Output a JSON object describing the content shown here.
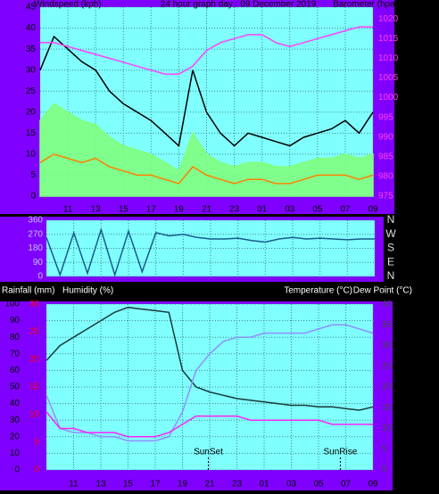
{
  "chart_data": [
    {
      "type": "line",
      "title": "24 hour graph day : 09 December 2019",
      "ylabel": "Windspeed (kph)",
      "y2label": "Barometer (hpa)",
      "x": [
        9,
        10,
        11,
        12,
        13,
        14,
        15,
        16,
        17,
        18,
        19,
        20,
        21,
        22,
        23,
        24,
        25,
        26,
        27,
        28,
        29,
        30,
        31,
        32,
        33
      ],
      "xlim": [
        9,
        33
      ],
      "xticks": [
        11,
        13,
        15,
        17,
        19,
        21,
        23,
        {
          "value": 25,
          "label": "01"
        },
        {
          "value": 27,
          "label": "03"
        },
        {
          "value": 29,
          "label": "05"
        },
        {
          "value": 31,
          "label": "07"
        },
        {
          "value": 33,
          "label": "09"
        }
      ],
      "ylim": [
        0,
        45
      ],
      "yticks": [
        0,
        5,
        10,
        15,
        20,
        25,
        30,
        35,
        40,
        45
      ],
      "y2lim": [
        975,
        1023
      ],
      "y2ticks": [
        975,
        980,
        985,
        990,
        995,
        1000,
        1005,
        1010,
        1015,
        1020
      ],
      "grid": true,
      "series": [
        {
          "color": "#000000",
          "values": [
            30,
            38,
            35,
            32,
            30,
            25,
            22,
            20,
            18,
            15,
            12,
            30,
            20,
            15,
            12,
            15,
            14,
            13,
            12,
            14,
            15,
            16,
            18,
            15,
            20
          ]
        },
        {
          "color": "#80ff80",
          "area": true,
          "values": [
            18,
            22,
            20,
            18,
            17,
            14,
            12,
            11,
            10,
            8,
            6,
            15,
            10,
            8,
            7,
            8,
            8,
            7,
            7,
            8,
            9,
            9,
            10,
            9,
            10
          ]
        },
        {
          "color": "#ff8000",
          "values": [
            8,
            10,
            9,
            8,
            9,
            7,
            6,
            5,
            5,
            4,
            3,
            7,
            5,
            4,
            3,
            4,
            4,
            3,
            3,
            4,
            5,
            5,
            5,
            4,
            5
          ]
        },
        {
          "color": "#ff40ff",
          "axis": "y2",
          "values": [
            1014,
            1014,
            1013,
            1012,
            1011,
            1010,
            1009,
            1008,
            1007,
            1006,
            1006,
            1008,
            1012,
            1014,
            1015,
            1016,
            1016,
            1014,
            1013,
            1014,
            1015,
            1016,
            1017,
            1018,
            1018
          ]
        }
      ]
    },
    {
      "type": "line",
      "x": [
        9,
        10,
        11,
        12,
        13,
        14,
        15,
        16,
        17,
        18,
        19,
        20,
        21,
        22,
        23,
        24,
        25,
        26,
        27,
        28,
        29,
        30,
        31,
        32,
        33
      ],
      "xlim": [
        9,
        33
      ],
      "ylim": [
        0,
        360
      ],
      "yticks": [
        0,
        90,
        180,
        270,
        360
      ],
      "y2lim": [
        0,
        360
      ],
      "y2ticks": [
        {
          "value": 0,
          "label": "N"
        },
        {
          "value": 90,
          "label": "E"
        },
        {
          "value": 180,
          "label": "S"
        },
        {
          "value": 270,
          "label": "W"
        },
        {
          "value": 360,
          "label": "N"
        }
      ],
      "grid": true,
      "series": [
        {
          "color": "#1a5a8a",
          "values": [
            250,
            10,
            280,
            20,
            300,
            10,
            290,
            30,
            280,
            260,
            270,
            250,
            240,
            240,
            245,
            230,
            220,
            240,
            250,
            240,
            245,
            240,
            235,
            240,
            240
          ]
        }
      ]
    },
    {
      "type": "line",
      "axis_labels": [
        "Rainfall (mm)",
        "Humidity (%)",
        "Temperature (°C)",
        "Dew Point (°C)"
      ],
      "x": [
        9,
        10,
        11,
        12,
        13,
        14,
        15,
        16,
        17,
        18,
        19,
        20,
        21,
        22,
        23,
        24,
        25,
        26,
        27,
        28,
        29,
        30,
        31,
        32,
        33
      ],
      "xlim": [
        9,
        33
      ],
      "xticks": [
        11,
        13,
        15,
        17,
        19,
        21,
        23,
        {
          "value": 25,
          "label": "01"
        },
        {
          "value": 27,
          "label": "03"
        },
        {
          "value": 29,
          "label": "05"
        },
        {
          "value": 31,
          "label": "07"
        },
        {
          "value": 33,
          "label": "09"
        }
      ],
      "ylim": [
        0,
        100
      ],
      "yticks": [
        0,
        10,
        20,
        30,
        40,
        50,
        60,
        70,
        80,
        90,
        100
      ],
      "y2lim": [
        0,
        40
      ],
      "y2ticks": [
        0,
        5,
        10,
        15,
        20,
        25,
        30,
        35,
        40
      ],
      "y3lim": [
        0,
        30
      ],
      "y3ticks": [
        0,
        5,
        10,
        15,
        20,
        25,
        30
      ],
      "grid": true,
      "annotations": [
        {
          "text": "SunSet",
          "x": 20.9
        },
        {
          "text": "SunRise",
          "x": 30.6
        }
      ],
      "series": [
        {
          "color": "#1a3a3a",
          "values": [
            66,
            75,
            80,
            85,
            90,
            95,
            98,
            97,
            96,
            95,
            60,
            50,
            47,
            45,
            43,
            42,
            41,
            40,
            39,
            39,
            38,
            38,
            37,
            36,
            38
          ]
        },
        {
          "color": "#9090ff",
          "axis": "y2",
          "values": [
            18,
            10,
            9,
            9,
            8,
            8,
            7,
            7,
            7,
            8,
            14,
            24,
            28,
            31,
            32,
            32,
            33,
            33,
            33,
            33,
            34,
            35,
            35,
            34,
            33
          ]
        },
        {
          "color": "#ff20ff",
          "axis": "y2",
          "values": [
            14,
            10,
            10,
            9,
            9,
            9,
            8,
            8,
            8,
            9,
            11,
            13,
            13,
            13,
            13,
            12,
            12,
            12,
            12,
            12,
            12,
            11,
            11,
            11,
            11
          ]
        }
      ]
    }
  ]
}
